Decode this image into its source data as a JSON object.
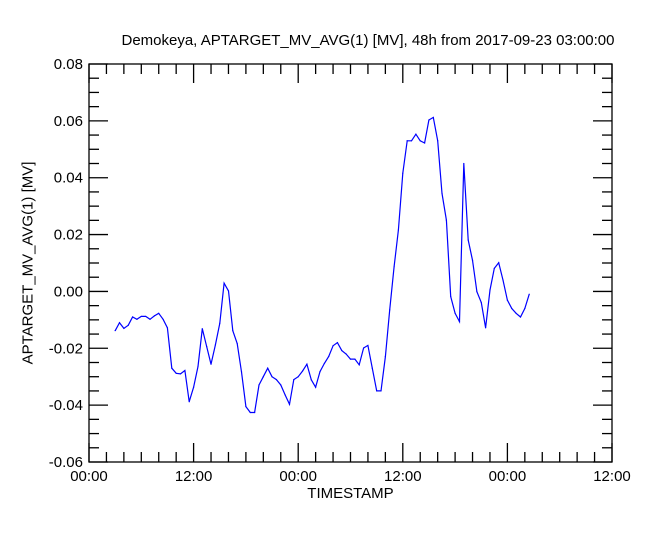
{
  "chart_data": {
    "type": "line",
    "title": "Demokeya, APTARGET_MV_AVG(1) [MV], 48h from  2017-09-23 03:00:00",
    "xlabel": "TIMESTAMP",
    "ylabel": "APTARGET_MV_AVG(1) [MV]",
    "xlim_hours": [
      0,
      60
    ],
    "x_ticks": [
      {
        "hours": 0,
        "label": "00:00"
      },
      {
        "hours": 12,
        "label": "12:00"
      },
      {
        "hours": 24,
        "label": "00:00"
      },
      {
        "hours": 36,
        "label": "12:00"
      },
      {
        "hours": 48,
        "label": "00:00"
      },
      {
        "hours": 60,
        "label": "12:00"
      }
    ],
    "x_minor_step_hours": 2,
    "ylim": [
      -0.06,
      0.08
    ],
    "y_ticks": [
      "-0.06",
      "-0.04",
      "-0.02",
      "0.00",
      "0.02",
      "0.04",
      "0.06",
      "0.08"
    ],
    "y_minor_step": 0.005,
    "grid": false,
    "series": [
      {
        "name": "APTARGET_MV_AVG(1)",
        "color": "#0000ff",
        "x_start_hours": 3,
        "x_step_hours": 0.5,
        "values": [
          -0.0138,
          -0.011,
          -0.013,
          -0.0119,
          -0.009,
          -0.0098,
          -0.0088,
          -0.0088,
          -0.0098,
          -0.0086,
          -0.0077,
          -0.0098,
          -0.0128,
          -0.027,
          -0.0288,
          -0.029,
          -0.0278,
          -0.0388,
          -0.0337,
          -0.0264,
          -0.0131,
          -0.0194,
          -0.0256,
          -0.0188,
          -0.0112,
          0.0029,
          0.0002,
          -0.0138,
          -0.0183,
          -0.0283,
          -0.0405,
          -0.0426,
          -0.0426,
          -0.0329,
          -0.03,
          -0.027,
          -0.03,
          -0.031,
          -0.0329,
          -0.0364,
          -0.0397,
          -0.031,
          -0.03,
          -0.028,
          -0.0256,
          -0.0311,
          -0.0337,
          -0.0282,
          -0.0253,
          -0.0229,
          -0.0191,
          -0.018,
          -0.0208,
          -0.022,
          -0.0238,
          -0.0238,
          -0.0258,
          -0.0199,
          -0.019,
          -0.027,
          -0.035,
          -0.035,
          -0.0229,
          -0.0065,
          0.0087,
          0.0216,
          0.0416,
          0.053,
          0.053,
          0.0553,
          0.053,
          0.0522,
          0.0603,
          0.0612,
          0.053,
          0.0345,
          0.0251,
          -0.0018,
          -0.0077,
          -0.0106,
          0.045,
          0.0181,
          0.011,
          -0.0001,
          -0.0039,
          -0.0128,
          0.0005,
          0.0081,
          0.0101,
          0.004,
          -0.0031,
          -0.006,
          -0.0077,
          -0.009,
          -0.006,
          -0.001
        ]
      }
    ]
  }
}
